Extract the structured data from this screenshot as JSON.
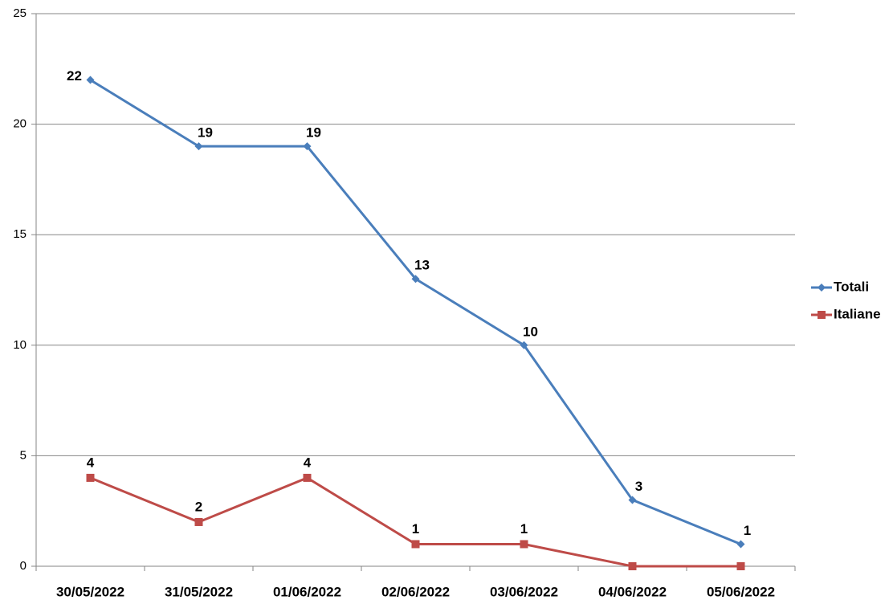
{
  "chart_data": {
    "type": "line",
    "categories": [
      "30/05/2022",
      "31/05/2022",
      "01/06/2022",
      "02/06/2022",
      "03/06/2022",
      "04/06/2022",
      "05/06/2022"
    ],
    "series": [
      {
        "name": "Totali",
        "color": "#4a7ebb",
        "marker": "diamond",
        "values": [
          22,
          19,
          19,
          13,
          10,
          3,
          1
        ]
      },
      {
        "name": "Italiane",
        "color": "#be4b48",
        "marker": "square",
        "values": [
          4,
          2,
          4,
          1,
          1,
          0,
          0
        ],
        "value_labels": [
          "4",
          "2",
          "4",
          "1",
          "1",
          null,
          null
        ]
      }
    ],
    "ylim": [
      0,
      25
    ],
    "yticks": [
      0,
      5,
      10,
      15,
      20,
      25
    ],
    "grid": true,
    "legend": "right"
  }
}
